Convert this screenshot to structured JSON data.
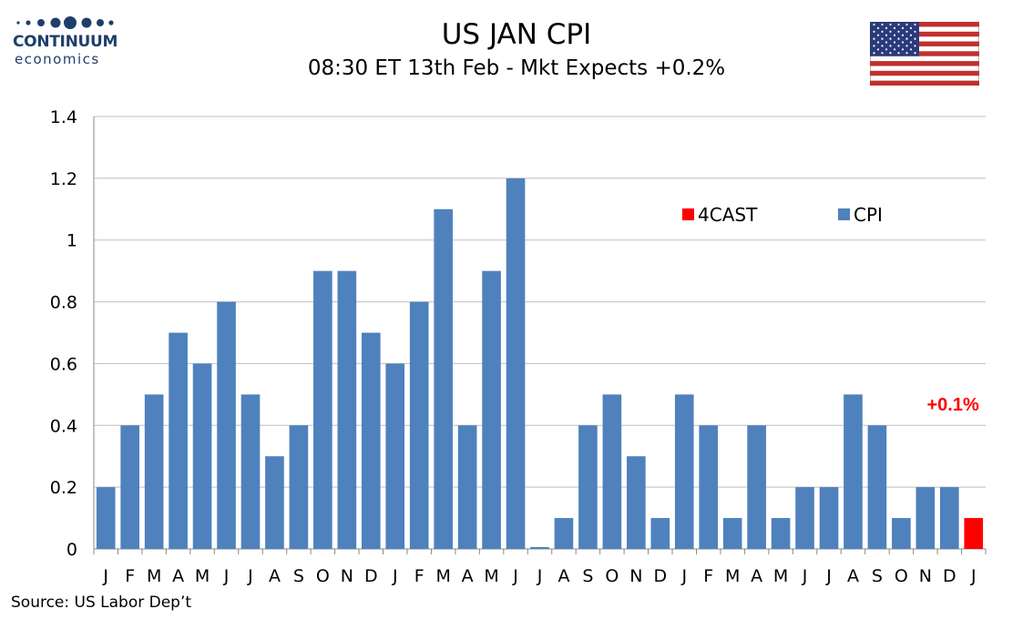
{
  "logo": {
    "name": "CONTINUUM",
    "sub": "economics"
  },
  "header": {
    "title": "US JAN CPI",
    "subtitle": "08:30 ET 13th Feb - Mkt Expects +0.2%"
  },
  "flag": {
    "icon": "us-flag-icon"
  },
  "source": "Source: US Labor Dep’t",
  "colors": {
    "cpi": "#4f81bd",
    "forecast": "#ff0000",
    "grid": "#bfbfbf",
    "logo": "#1f3f6a"
  },
  "chart_data": {
    "type": "bar",
    "categories": [
      "J",
      "F",
      "M",
      "A",
      "M",
      "J",
      "J",
      "A",
      "S",
      "O",
      "N",
      "D",
      "J",
      "F",
      "M",
      "A",
      "M",
      "J",
      "J",
      "A",
      "S",
      "O",
      "N",
      "D",
      "J",
      "F",
      "M",
      "A",
      "M",
      "J",
      "J",
      "A",
      "S",
      "O",
      "N",
      "D",
      "J"
    ],
    "series": [
      {
        "name": "CPI",
        "values": [
          0.2,
          0.4,
          0.5,
          0.7,
          0.6,
          0.8,
          0.5,
          0.3,
          0.4,
          0.9,
          0.9,
          0.7,
          0.6,
          0.8,
          1.1,
          0.4,
          0.9,
          1.2,
          0.0,
          0.1,
          0.4,
          0.5,
          0.3,
          0.1,
          0.5,
          0.4,
          0.1,
          0.4,
          0.1,
          0.2,
          0.2,
          0.5,
          0.4,
          0.1,
          0.2,
          0.2,
          null
        ]
      },
      {
        "name": "4CAST",
        "values": [
          null,
          null,
          null,
          null,
          null,
          null,
          null,
          null,
          null,
          null,
          null,
          null,
          null,
          null,
          null,
          null,
          null,
          null,
          null,
          null,
          null,
          null,
          null,
          null,
          null,
          null,
          null,
          null,
          null,
          null,
          null,
          null,
          null,
          null,
          null,
          null,
          0.1
        ]
      }
    ],
    "y_ticks": [
      "0",
      "0.2",
      "0.4",
      "0.6",
      "0.8",
      "1",
      "1.2",
      "1.4"
    ],
    "ylim": [
      0,
      1.4
    ],
    "grid": true,
    "legend": {
      "placement": "top-right",
      "items": [
        "4CAST",
        "CPI"
      ]
    },
    "annotation": {
      "text": "+0.1%",
      "category_index": 36
    }
  }
}
